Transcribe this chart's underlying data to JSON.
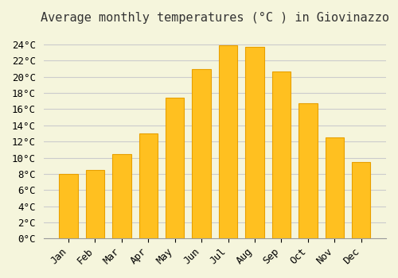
{
  "title": "Average monthly temperatures (°C ) in Giovinazzo",
  "months": [
    "Jan",
    "Feb",
    "Mar",
    "Apr",
    "May",
    "Jun",
    "Jul",
    "Aug",
    "Sep",
    "Oct",
    "Nov",
    "Dec"
  ],
  "values": [
    8.0,
    8.5,
    10.4,
    13.0,
    17.4,
    21.0,
    23.9,
    23.7,
    20.7,
    16.7,
    12.5,
    9.5
  ],
  "bar_color": "#FFC020",
  "bar_edge_color": "#E8A000",
  "background_color": "#F5F5DC",
  "grid_color": "#CCCCCC",
  "ylim": [
    0,
    25
  ],
  "yticks": [
    0,
    2,
    4,
    6,
    8,
    10,
    12,
    14,
    16,
    18,
    20,
    22,
    24
  ],
  "title_fontsize": 11,
  "tick_fontsize": 9,
  "font_family": "monospace"
}
